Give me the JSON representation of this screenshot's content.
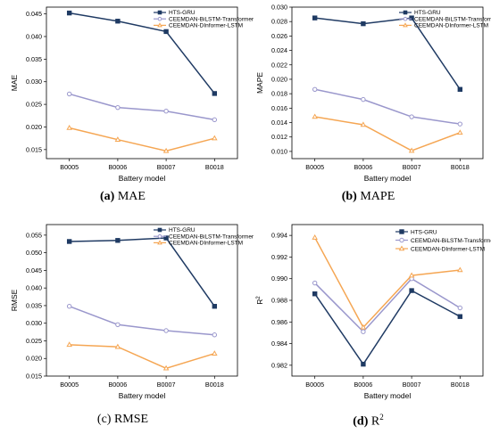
{
  "chart_data": [
    {
      "type": "line",
      "caption": {
        "letter": "(a)",
        "name": "MAE"
      },
      "xlabel": "Battery model",
      "ylabel": "MAE",
      "categories": [
        "B0005",
        "B0006",
        "B0007",
        "B0018"
      ],
      "ylim": [
        0.013,
        0.0465
      ],
      "yticks": [
        "0.015",
        "0.020",
        "0.025",
        "0.030",
        "0.035",
        "0.040",
        "0.045"
      ],
      "legend_position": "top-right",
      "legend_size": "small",
      "series": [
        {
          "name": "HTS-GRU",
          "color": "#1f3a63",
          "marker": "square",
          "values": [
            0.0452,
            0.0434,
            0.0411,
            0.0274
          ]
        },
        {
          "name": "CEEMDAN-BiLSTM-Transformer",
          "color": "#9a97cc",
          "marker": "circle",
          "values": [
            0.0273,
            0.0243,
            0.0235,
            0.0216
          ]
        },
        {
          "name": "CEEMDAN-DInformer-LSTM",
          "color": "#f5a653",
          "marker": "triangle",
          "values": [
            0.0198,
            0.0172,
            0.0147,
            0.0175
          ]
        }
      ]
    },
    {
      "type": "line",
      "caption": {
        "letter": "(b)",
        "name": "MAPE"
      },
      "xlabel": "Battery model",
      "ylabel": "MAPE",
      "categories": [
        "B0005",
        "B0006",
        "B0007",
        "B0018"
      ],
      "ylim": [
        0.009,
        0.03
      ],
      "yticks": [
        "0.010",
        "0.012",
        "0.014",
        "0.016",
        "0.018",
        "0.020",
        "0.022",
        "0.024",
        "0.026",
        "0.028",
        "0.030"
      ],
      "legend_position": "top-right",
      "legend_size": "small",
      "series": [
        {
          "name": "HTS-GRU",
          "color": "#1f3a63",
          "marker": "square",
          "values": [
            0.0285,
            0.0277,
            0.0285,
            0.0186
          ]
        },
        {
          "name": "CEEMDAN-BiLSTM-Transformer",
          "color": "#9a97cc",
          "marker": "circle",
          "values": [
            0.0186,
            0.0172,
            0.0148,
            0.0138
          ]
        },
        {
          "name": "CEEMDAN-DInformer-LSTM",
          "color": "#f5a653",
          "marker": "triangle",
          "values": [
            0.0148,
            0.0137,
            0.0101,
            0.0126
          ]
        }
      ]
    },
    {
      "type": "line",
      "caption": {
        "letter": "(c)",
        "name": "RMSE"
      },
      "xlabel": "Battery model",
      "ylabel": "RMSE",
      "categories": [
        "B0005",
        "B0006",
        "B0007",
        "B0018"
      ],
      "ylim": [
        0.015,
        0.058
      ],
      "yticks": [
        "0.015",
        "0.020",
        "0.025",
        "0.030",
        "0.035",
        "0.040",
        "0.045",
        "0.050",
        "0.055"
      ],
      "legend_position": "top-right",
      "legend_size": "small",
      "series": [
        {
          "name": "HTS-GRU",
          "color": "#1f3a63",
          "marker": "square",
          "values": [
            0.0532,
            0.0535,
            0.0542,
            0.0348
          ]
        },
        {
          "name": "CEEMDAN-BiLSTM-Transformer",
          "color": "#9a97cc",
          "marker": "circle",
          "values": [
            0.0348,
            0.0296,
            0.0279,
            0.0267
          ]
        },
        {
          "name": "CEEMDAN-DInformer-LSTM",
          "color": "#f5a653",
          "marker": "triangle",
          "values": [
            0.0239,
            0.0233,
            0.0172,
            0.0214
          ]
        }
      ]
    },
    {
      "type": "line",
      "caption": {
        "letter": "(d)",
        "name": "R",
        "sup": "2"
      },
      "xlabel": "Battery model",
      "ylabel": "R",
      "ylabel_sup": "2",
      "categories": [
        "B0005",
        "B0006",
        "B0007",
        "B0018"
      ],
      "ylim": [
        0.981,
        0.995
      ],
      "yticks": [
        "0.982",
        "0.984",
        "0.986",
        "0.988",
        "0.990",
        "0.992",
        "0.994"
      ],
      "legend_position": "top-right",
      "legend_size": "large",
      "series": [
        {
          "name": "HTS-GRU",
          "color": "#1f3a63",
          "marker": "square",
          "values": [
            0.9886,
            0.9821,
            0.9889,
            0.9865
          ]
        },
        {
          "name": "CEEMDAN-BiLSTM-Transformer",
          "color": "#9a97cc",
          "marker": "circle",
          "values": [
            0.9896,
            0.9851,
            0.99,
            0.9873
          ]
        },
        {
          "name": "CEEMDAN-DInformer-LSTM",
          "color": "#f5a653",
          "marker": "triangle",
          "values": [
            0.9938,
            0.9855,
            0.9903,
            0.9908
          ]
        }
      ]
    }
  ]
}
